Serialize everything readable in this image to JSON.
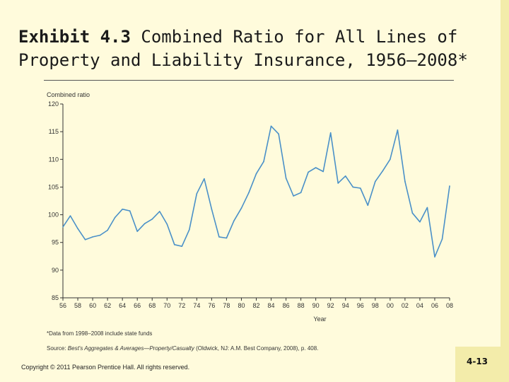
{
  "slide": {
    "title_bold": "Exhibit 4.3",
    "title_rest": " Combined Ratio for All Lines of Property and Liability Insurance, 1956–2008*",
    "footnote": "*Data from 1998–2008 include state funds",
    "source_prefix": "Source: ",
    "source_italic": "Best's Aggregates & Averages—Property/Casualty",
    "source_rest": " (Oldwick, NJ: A.M. Best Company, 2008), p. 408.",
    "copyright": "Copyright © 2011 Pearson Prentice Hall. All rights reserved.",
    "slide_number": "4-13"
  },
  "colors": {
    "background": "#fffbdc",
    "line": "#4a90c8",
    "axis": "#333333",
    "accent_box": "#f3ecaa"
  },
  "chart_data": {
    "type": "line",
    "ylabel": "Combined ratio",
    "xlabel": "Year",
    "ylim": [
      85,
      120
    ],
    "yticks": [
      85,
      90,
      95,
      100,
      105,
      110,
      115,
      120
    ],
    "xlim": [
      1956,
      2008
    ],
    "xtick_labels": [
      "56",
      "58",
      "60",
      "62",
      "64",
      "66",
      "68",
      "70",
      "72",
      "74",
      "76",
      "78",
      "80",
      "82",
      "84",
      "86",
      "88",
      "90",
      "92",
      "94",
      "96",
      "98",
      "00",
      "02",
      "04",
      "06",
      "08"
    ],
    "grid": false,
    "series": [
      {
        "x": [
          1956,
          1957,
          1958,
          1959,
          1960,
          1961,
          1962,
          1963,
          1964,
          1965,
          1966,
          1967,
          1968,
          1969,
          1970,
          1971,
          1972,
          1973,
          1974,
          1975,
          1976,
          1977,
          1978,
          1979,
          1980,
          1981,
          1982,
          1983,
          1984,
          1985,
          1986,
          1987,
          1988,
          1989,
          1990,
          1991,
          1992,
          1993,
          1994,
          1995,
          1996,
          1997,
          1998,
          1999,
          2000,
          2001,
          2002,
          2003,
          2004,
          2005,
          2006,
          2007,
          2008
        ],
        "y": [
          97.8,
          99.8,
          97.5,
          95.5,
          96.0,
          96.3,
          97.2,
          99.5,
          101.0,
          100.7,
          97.0,
          98.4,
          99.2,
          100.6,
          98.3,
          94.6,
          94.3,
          97.3,
          103.8,
          106.5,
          101.0,
          96.0,
          95.8,
          98.9,
          101.2,
          104.0,
          107.4,
          109.6,
          116.0,
          114.6,
          106.6,
          103.4,
          104.0,
          107.7,
          108.5,
          107.8,
          114.8,
          105.7,
          107.0,
          105.0,
          104.8,
          101.7,
          106.0,
          107.9,
          110.0,
          115.3,
          106.0,
          100.3,
          98.7,
          101.3,
          92.4,
          95.6,
          105.2
        ]
      }
    ]
  }
}
